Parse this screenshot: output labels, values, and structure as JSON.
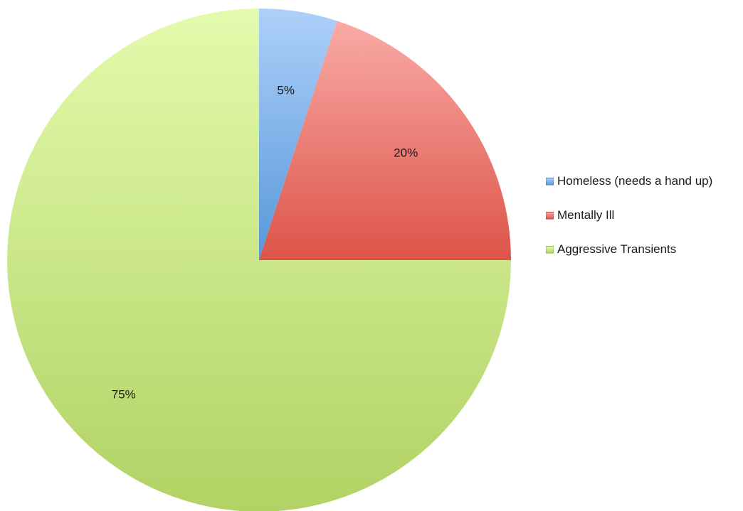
{
  "chart_data": {
    "type": "pie",
    "categories": [
      "Homeless (needs a hand up)",
      "Mentally Ill",
      "Aggressive Transients"
    ],
    "values": [
      5,
      20,
      75
    ],
    "data_labels": [
      "5%",
      "20%",
      "75%"
    ],
    "start_angle": "12 o'clock, clockwise",
    "legend_position": "right",
    "colors": [
      {
        "light": "#aed0fa",
        "dark": "#5797d9"
      },
      {
        "light": "#f9aaa6",
        "dark": "#dd5448"
      },
      {
        "light": "#e3fbad",
        "dark": "#b1d264"
      }
    ]
  }
}
